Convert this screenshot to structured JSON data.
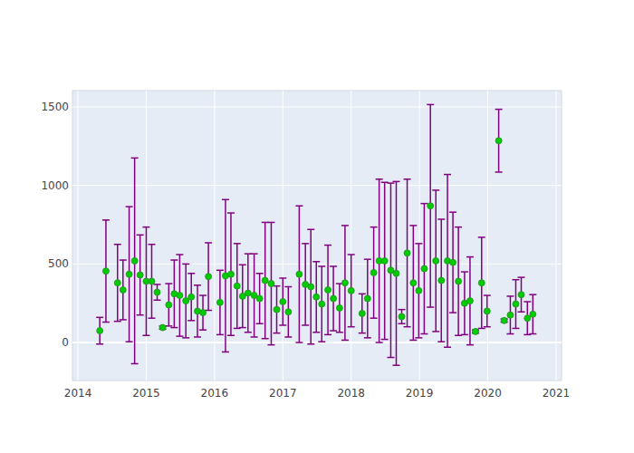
{
  "chart_data": {
    "type": "scatter",
    "marker": "circle",
    "color": "#00cc00",
    "grid": true,
    "x": [
      2014.32,
      2014.41,
      2014.58,
      2014.66,
      2014.75,
      2014.83,
      2014.91,
      2015.0,
      2015.08,
      2015.16,
      2015.24,
      2015.33,
      2015.41,
      2015.49,
      2015.58,
      2015.66,
      2015.75,
      2015.83,
      2015.91,
      2016.08,
      2016.16,
      2016.24,
      2016.33,
      2016.41,
      2016.49,
      2016.58,
      2016.66,
      2016.74,
      2016.83,
      2016.91,
      2017.0,
      2017.08,
      2017.24,
      2017.33,
      2017.41,
      2017.49,
      2017.57,
      2017.66,
      2017.74,
      2017.83,
      2017.91,
      2018.0,
      2018.16,
      2018.24,
      2018.33,
      2018.41,
      2018.49,
      2018.58,
      2018.66,
      2018.74,
      2018.82,
      2018.91,
      2018.99,
      2019.07,
      2019.16,
      2019.24,
      2019.32,
      2019.41,
      2019.49,
      2019.57,
      2019.66,
      2019.74,
      2019.82,
      2019.91,
      2019.99,
      2020.16,
      2020.24,
      2020.33,
      2020.41,
      2020.49,
      2020.58,
      2020.66
    ],
    "values": [
      75,
      455,
      380,
      335,
      435,
      520,
      430,
      390,
      390,
      320,
      95,
      240,
      310,
      300,
      265,
      290,
      200,
      190,
      420,
      255,
      425,
      435,
      360,
      295,
      315,
      300,
      280,
      395,
      375,
      210,
      260,
      195,
      435,
      370,
      355,
      290,
      245,
      335,
      280,
      220,
      380,
      330,
      185,
      280,
      445,
      520,
      520,
      460,
      440,
      165,
      570,
      380,
      330,
      470,
      870,
      520,
      395,
      520,
      510,
      390,
      250,
      265,
      70,
      380,
      200,
      1285,
      140,
      175,
      245,
      305,
      155,
      180
    ],
    "errors": [
      85,
      325,
      245,
      190,
      430,
      655,
      255,
      345,
      235,
      50,
      10,
      135,
      215,
      260,
      235,
      150,
      165,
      110,
      215,
      205,
      485,
      390,
      270,
      200,
      250,
      265,
      160,
      370,
      390,
      150,
      150,
      160,
      435,
      260,
      365,
      225,
      240,
      285,
      205,
      155,
      365,
      230,
      125,
      250,
      290,
      520,
      500,
      555,
      585,
      45,
      470,
      365,
      300,
      415,
      645,
      450,
      390,
      550,
      320,
      345,
      200,
      280,
      10,
      290,
      100,
      200,
      10,
      120,
      155,
      110,
      105,
      125
    ],
    "xlim": [
      2013.92,
      2021.08
    ],
    "ylim": [
      -242,
      1604
    ],
    "xticks": [
      2014,
      2015,
      2016,
      2017,
      2018,
      2019,
      2020,
      2021
    ],
    "yticks": [
      0,
      500,
      1000,
      1500
    ]
  }
}
